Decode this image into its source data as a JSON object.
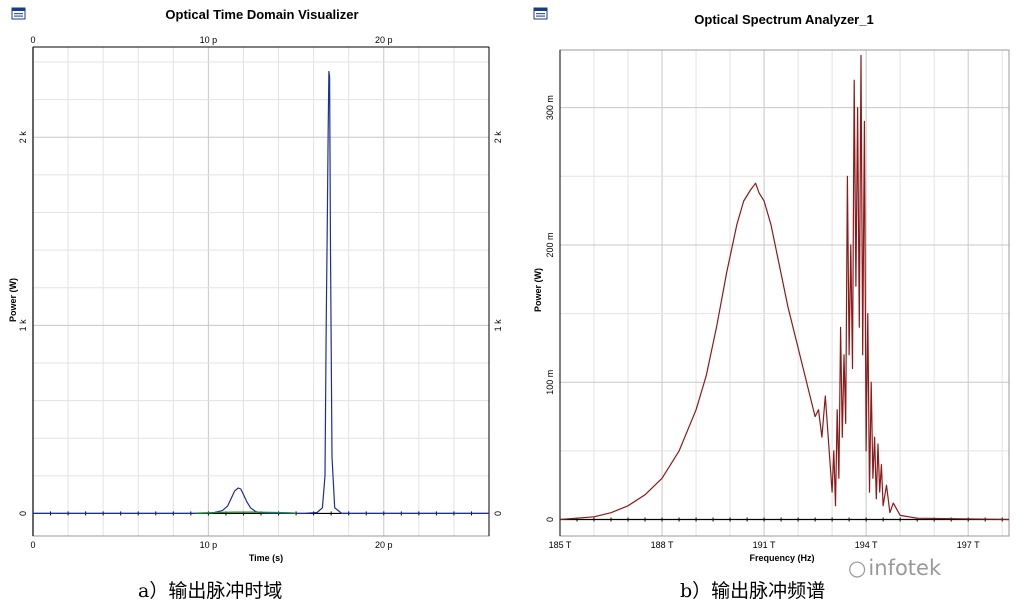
{
  "captions": {
    "left": "a）输出脉冲时域",
    "right": "b）输出脉冲频谱"
  },
  "watermark": "infotek",
  "chart_data": [
    {
      "type": "line",
      "title": "Optical Time Domain Visualizer",
      "xlabel": "Time (s)",
      "ylabel": "Power (W)",
      "xlim": [
        0,
        26
      ],
      "ylim": [
        -120,
        2480
      ],
      "x_ticks": [
        {
          "v": 0,
          "label": "0"
        },
        {
          "v": 10,
          "label": "10 p"
        },
        {
          "v": 20,
          "label": "20 p"
        }
      ],
      "x_top_ticks": [
        {
          "v": 0,
          "label": "0"
        },
        {
          "v": 10,
          "label": "10 p"
        },
        {
          "v": 20,
          "label": "20 p"
        }
      ],
      "y_ticks": [
        {
          "v": 0,
          "label": "0"
        },
        {
          "v": 1000,
          "label": "1 k"
        },
        {
          "v": 2000,
          "label": "2 k"
        }
      ],
      "y_right_ticks": [
        {
          "v": 0,
          "label": "0"
        },
        {
          "v": 1000,
          "label": "1 k"
        },
        {
          "v": 2000,
          "label": "2 k"
        }
      ],
      "grid": true,
      "colors": {
        "main": "#1c2f9a",
        "secondary": "#1f8a1f"
      },
      "series": [
        {
          "color": "#1c2f9a",
          "x": [
            0,
            9.5,
            10.2,
            10.8,
            11.1,
            11.3,
            11.5,
            11.7,
            11.85,
            12.0,
            12.2,
            12.4,
            12.7,
            13.0,
            13.5,
            15.5,
            16.2,
            16.5,
            16.65,
            16.72,
            16.78,
            16.83,
            16.87,
            16.91,
            16.96,
            17.05,
            17.2,
            17.6,
            26
          ],
          "y": [
            0,
            0,
            2,
            15,
            40,
            80,
            120,
            135,
            130,
            100,
            60,
            30,
            10,
            3,
            0,
            0,
            5,
            30,
            200,
            1000,
            1550,
            2050,
            2350,
            2320,
            1400,
            300,
            30,
            0,
            0
          ]
        },
        {
          "color": "#1f8a1f",
          "x": [
            9.3,
            10.5,
            11.5,
            12.5,
            13.5,
            14.5,
            15.0
          ],
          "y": [
            2,
            5,
            7,
            7,
            6,
            4,
            2
          ]
        }
      ]
    },
    {
      "type": "line",
      "title": "Optical Spectrum Analyzer_1",
      "xlabel": "Frequency (Hz)",
      "ylabel": "Power (W)",
      "xlim": [
        185,
        198.2
      ],
      "ylim": [
        -0.012,
        0.342
      ],
      "x_ticks": [
        {
          "v": 185,
          "label": "185 T"
        },
        {
          "v": 188,
          "label": "188 T"
        },
        {
          "v": 191,
          "label": "191 T"
        },
        {
          "v": 194,
          "label": "194 T"
        },
        {
          "v": 197,
          "label": "197 T"
        }
      ],
      "y_ticks": [
        {
          "v": 0,
          "label": "0"
        },
        {
          "v": 0.1,
          "label": "100 m"
        },
        {
          "v": 0.2,
          "label": "200 m"
        },
        {
          "v": 0.3,
          "label": "300 m"
        }
      ],
      "grid": true,
      "colors": {
        "main": "#8b1a1a"
      },
      "series": [
        {
          "color": "#8b1a1a",
          "x": [
            185,
            186,
            186.5,
            187,
            187.5,
            188,
            188.5,
            189,
            189.3,
            189.6,
            189.9,
            190.2,
            190.4,
            190.6,
            190.75,
            190.85,
            191.0,
            191.2,
            191.45,
            191.7,
            192.0,
            192.3,
            192.5,
            192.6,
            192.7,
            192.8,
            192.9,
            193.0,
            193.05,
            193.1,
            193.15,
            193.2,
            193.25,
            193.3,
            193.35,
            193.4,
            193.45,
            193.5,
            193.55,
            193.6,
            193.65,
            193.7,
            193.75,
            193.8,
            193.85,
            193.9,
            193.95,
            194.0,
            194.05,
            194.1,
            194.15,
            194.2,
            194.25,
            194.3,
            194.35,
            194.4,
            194.45,
            194.5,
            194.6,
            194.7,
            194.8,
            195.0,
            195.5,
            198.2
          ],
          "y": [
            0,
            0.002,
            0.005,
            0.01,
            0.018,
            0.03,
            0.05,
            0.08,
            0.105,
            0.14,
            0.18,
            0.215,
            0.232,
            0.24,
            0.245,
            0.238,
            0.232,
            0.215,
            0.185,
            0.155,
            0.125,
            0.095,
            0.075,
            0.08,
            0.06,
            0.09,
            0.055,
            0.02,
            0.05,
            0.01,
            0.08,
            0.03,
            0.14,
            0.06,
            0.12,
            0.07,
            0.25,
            0.12,
            0.2,
            0.11,
            0.32,
            0.17,
            0.3,
            0.14,
            0.338,
            0.12,
            0.29,
            0.05,
            0.15,
            0.02,
            0.1,
            0.03,
            0.06,
            0.015,
            0.055,
            0.02,
            0.04,
            0.01,
            0.025,
            0.005,
            0.012,
            0.003,
            0.001,
            0
          ]
        }
      ]
    }
  ]
}
